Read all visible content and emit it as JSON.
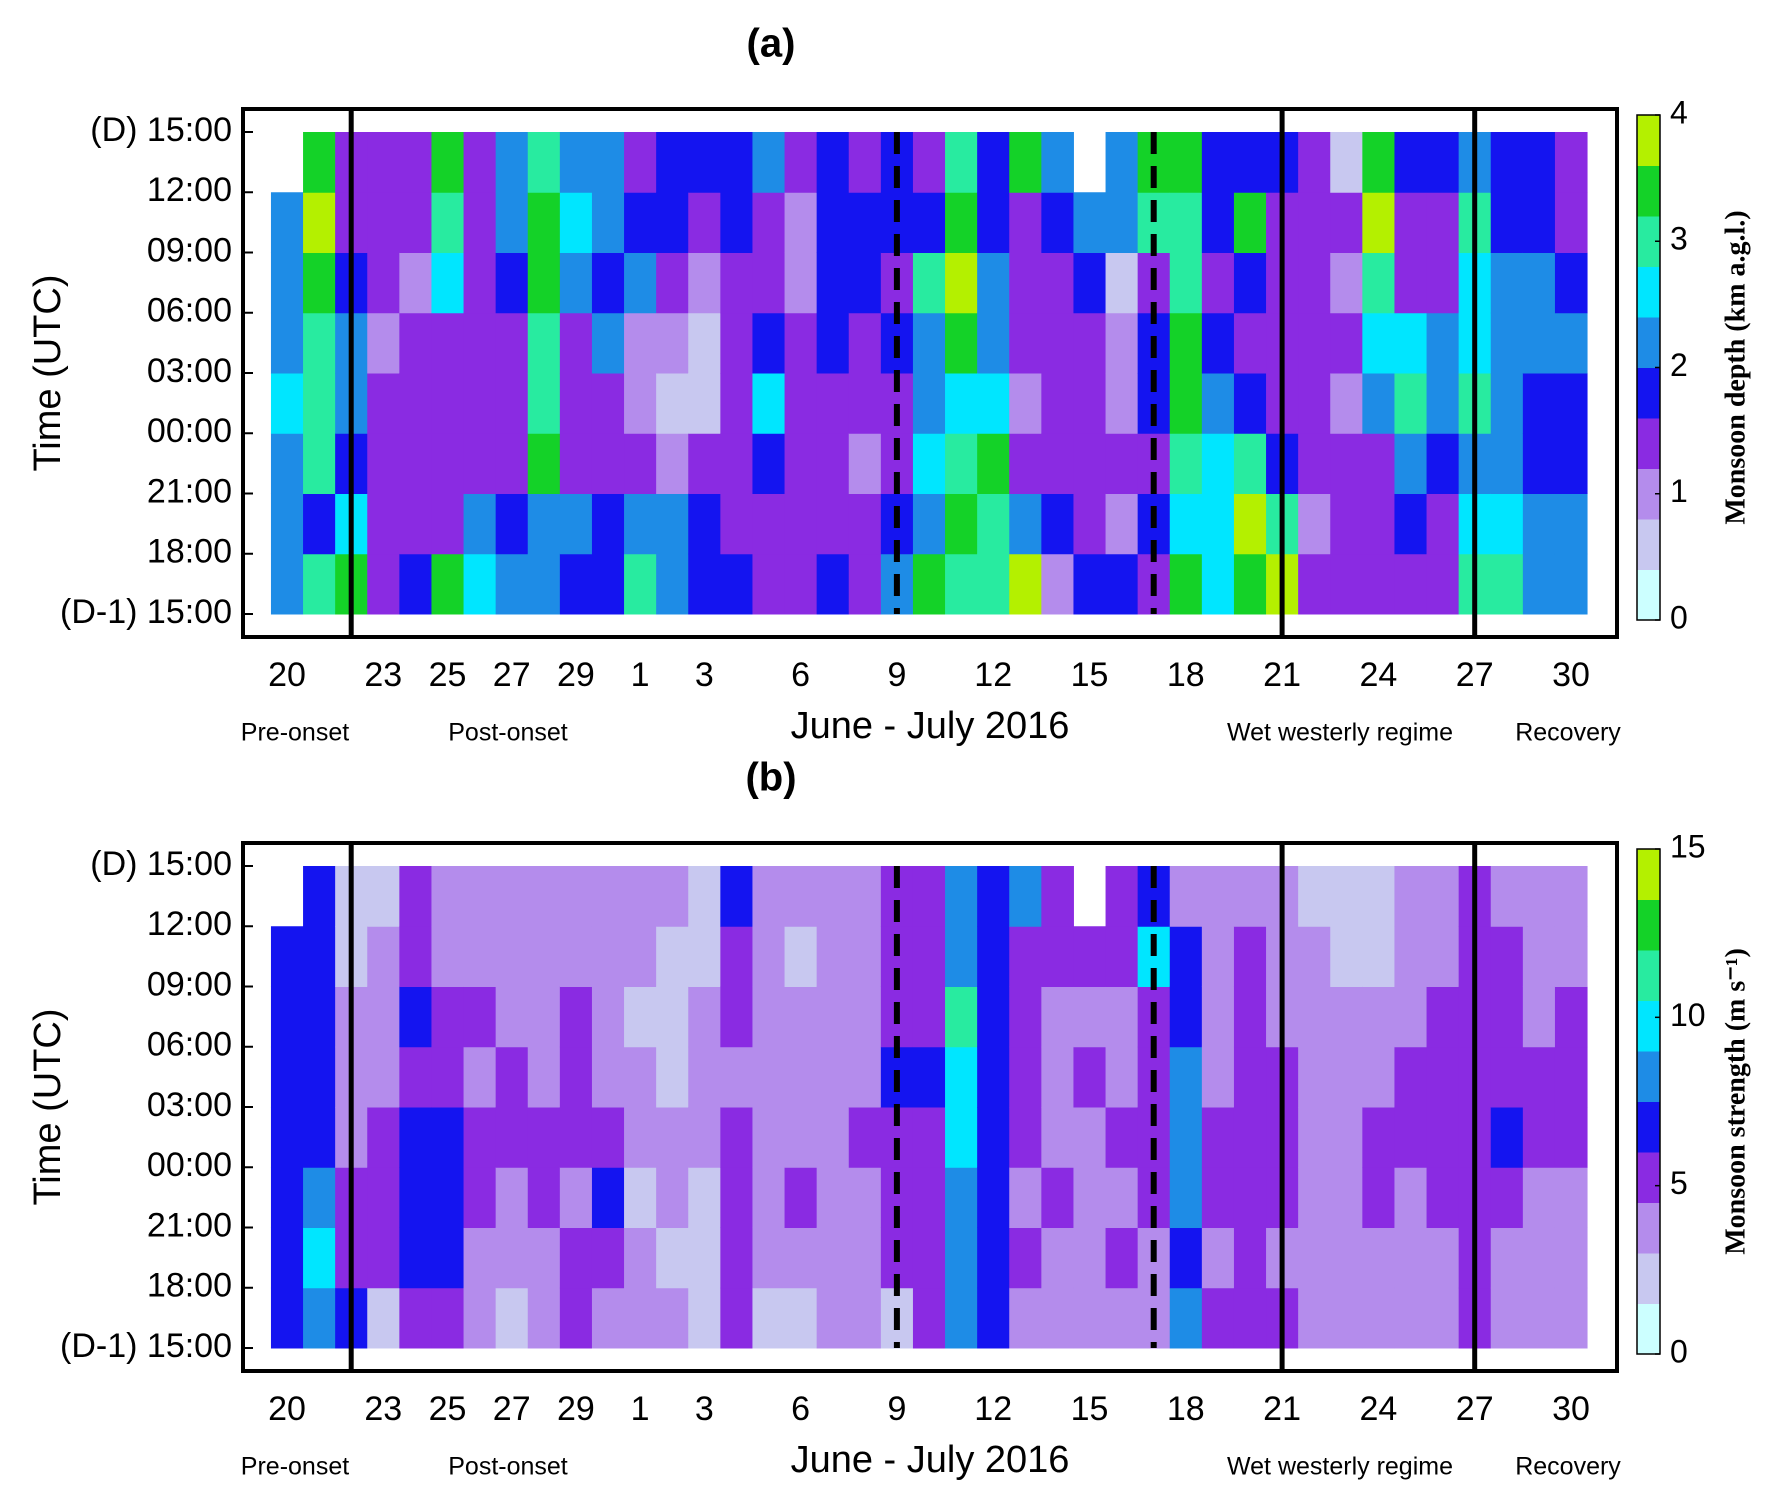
{
  "chart_data": [
    {
      "type": "heatmap",
      "title": "(a)",
      "xlabel": "June - July 2016",
      "ylabel": "Time (UTC)",
      "colorbar_label": "Monsoon depth (km a.g.l.)",
      "categories": [
        "20",
        null,
        null,
        "23",
        null,
        "25",
        null,
        "27",
        null,
        "29",
        null,
        "1",
        null,
        "3",
        null,
        null,
        "6",
        null,
        null,
        "9",
        null,
        null,
        "12",
        null,
        null,
        "15",
        null,
        null,
        "18",
        null,
        null,
        "21",
        null,
        null,
        "24",
        null,
        null,
        "27",
        null,
        null,
        "30"
      ],
      "ylim": [
        0,
        24
      ],
      "yticks": [
        {
          "value": 0,
          "label": "(D-1) 15:00"
        },
        {
          "value": 3,
          "label": "18:00"
        },
        {
          "value": 6,
          "label": "21:00"
        },
        {
          "value": 9,
          "label": "00:00"
        },
        {
          "value": 12,
          "label": "03:00"
        },
        {
          "value": 15,
          "label": "06:00"
        },
        {
          "value": 18,
          "label": "09:00"
        },
        {
          "value": 21,
          "label": "12:00"
        },
        {
          "value": 24,
          "label": "(D) 15:00"
        }
      ],
      "clim": [
        0,
        4
      ],
      "cticks": [
        0,
        1,
        2,
        3,
        4
      ],
      "colors": [
        "#ccffff",
        "#c8c8f0",
        "#b48cec",
        "#8a2be2",
        "#1414f0",
        "#1e8ce6",
        "#00e6ff",
        "#28eba0",
        "#14d228",
        "#b4f000"
      ],
      "annotations": [
        "Pre-onset",
        "Post-onset",
        "Wet westerly regime",
        "Recovery"
      ],
      "vlines": [
        {
          "at": 2,
          "style": "solid"
        },
        {
          "at": 19,
          "style": "dashed"
        },
        {
          "at": 27,
          "style": "dashed"
        },
        {
          "at": 31,
          "style": "solid"
        },
        {
          "at": 37,
          "style": "solid"
        }
      ],
      "z": [
        [
          2.2,
          2.1,
          2.3,
          2.4,
          2.3,
          2.2,
          2.3,
          null
        ],
        [
          2.8,
          1.8,
          3.0,
          2.9,
          3.1,
          3.2,
          3.6,
          3.5
        ],
        [
          3.4,
          2.6,
          1.8,
          2.0,
          2.2,
          1.6,
          1.2,
          1.3
        ],
        [
          1.4,
          1.2,
          1.5,
          1.3,
          1.1,
          1.2,
          1.3,
          1.4
        ],
        [
          1.6,
          1.3,
          1.2,
          1.5,
          1.4,
          1.1,
          1.2,
          1.3
        ],
        [
          3.3,
          1.5,
          1.4,
          1.2,
          1.3,
          2.6,
          3.0,
          3.4
        ],
        [
          2.7,
          2.2,
          1.5,
          1.3,
          1.2,
          1.4,
          1.3,
          1.3
        ],
        [
          2.0,
          1.6,
          1.4,
          1.2,
          1.3,
          1.8,
          2.1,
          2.0
        ],
        [
          2.3,
          2.2,
          3.2,
          2.8,
          3.1,
          3.5,
          3.2,
          2.9
        ],
        [
          1.8,
          2.0,
          1.5,
          1.2,
          1.4,
          2.3,
          2.5,
          2.2
        ],
        [
          1.7,
          1.6,
          1.2,
          1.4,
          2.0,
          1.9,
          2.1,
          2.0
        ],
        [
          2.9,
          2.2,
          1.4,
          0.8,
          0.9,
          2.0,
          1.6,
          1.5
        ],
        [
          2.2,
          2.0,
          1.0,
          0.7,
          0.9,
          1.3,
          1.8,
          1.9
        ],
        [
          1.8,
          1.9,
          1.4,
          0.6,
          0.7,
          0.8,
          1.2,
          1.6
        ],
        [
          1.7,
          1.3,
          1.2,
          1.5,
          1.3,
          1.4,
          1.6,
          1.7
        ],
        [
          1.3,
          1.2,
          1.6,
          2.6,
          1.7,
          1.4,
          1.3,
          2.3
        ],
        [
          1.4,
          1.3,
          1.2,
          1.5,
          1.2,
          0.9,
          0.8,
          1.4
        ],
        [
          1.6,
          1.4,
          1.3,
          1.5,
          1.7,
          1.6,
          1.6,
          1.7
        ],
        [
          1.5,
          1.2,
          1.1,
          1.3,
          1.4,
          1.6,
          1.7,
          1.5
        ],
        [
          2.0,
          1.7,
          1.3,
          1.4,
          1.6,
          1.5,
          1.7,
          1.6
        ],
        [
          3.2,
          2.2,
          2.5,
          2.1,
          2.3,
          2.8,
          1.8,
          1.4
        ],
        [
          3.0,
          3.2,
          3.1,
          2.4,
          3.3,
          3.6,
          3.2,
          3.1
        ],
        [
          2.9,
          3.1,
          3.3,
          2.4,
          2.3,
          2.0,
          1.6,
          1.9
        ],
        [
          3.6,
          2.2,
          1.4,
          1.1,
          1.3,
          1.5,
          1.2,
          3.3
        ],
        [
          1.0,
          1.8,
          1.3,
          1.2,
          1.4,
          1.5,
          1.8,
          2.1
        ],
        [
          1.9,
          1.4,
          1.2,
          1.3,
          1.5,
          1.6,
          2.0,
          null
        ],
        [
          1.6,
          1.0,
          1.2,
          1.1,
          0.9,
          0.7,
          2.1,
          2.0
        ],
        [
          1.5,
          1.8,
          1.4,
          1.6,
          1.7,
          1.5,
          3.1,
          3.3
        ],
        [
          3.3,
          2.7,
          3.1,
          3.4,
          3.3,
          2.9,
          3.0,
          3.3
        ],
        [
          2.6,
          2.5,
          2.4,
          2.2,
          1.6,
          1.5,
          1.6,
          1.6
        ],
        [
          3.5,
          3.6,
          3.1,
          1.6,
          1.4,
          1.6,
          3.4,
          1.7
        ],
        [
          3.8,
          2.8,
          1.6,
          1.4,
          1.2,
          1.3,
          1.4,
          1.6
        ],
        [
          1.2,
          1.1,
          1.3,
          1.2,
          1.4,
          1.5,
          1.3,
          1.5
        ],
        [
          1.3,
          1.2,
          1.5,
          1.1,
          1.2,
          0.8,
          1.3,
          0.4
        ],
        [
          1.4,
          1.3,
          1.5,
          2.3,
          2.4,
          3.0,
          3.7,
          3.5
        ],
        [
          1.2,
          1.6,
          2.1,
          3.0,
          2.6,
          1.3,
          1.4,
          1.6
        ],
        [
          1.3,
          1.4,
          1.7,
          2.1,
          2.0,
          1.5,
          1.4,
          1.6
        ],
        [
          2.8,
          2.5,
          2.2,
          3.0,
          2.7,
          2.4,
          2.9,
          2.2
        ],
        [
          2.9,
          2.5,
          2.1,
          2.0,
          2.2,
          2.1,
          1.9,
          1.8
        ],
        [
          2.2,
          2.0,
          1.8,
          1.9,
          2.1,
          2.0,
          1.7,
          1.6
        ],
        [
          2.3,
          2.2,
          1.9,
          1.6,
          2.0,
          1.8,
          1.5,
          1.4
        ]
      ]
    },
    {
      "type": "heatmap",
      "title": "(b)",
      "xlabel": "June - July 2016",
      "ylabel": "Time (UTC)",
      "colorbar_label": "Monsoon strength (m s⁻¹)",
      "categories": [
        "20",
        null,
        null,
        "23",
        null,
        "25",
        null,
        "27",
        null,
        "29",
        null,
        "1",
        null,
        "3",
        null,
        null,
        "6",
        null,
        null,
        "9",
        null,
        null,
        "12",
        null,
        null,
        "15",
        null,
        null,
        "18",
        null,
        null,
        "21",
        null,
        null,
        "24",
        null,
        null,
        "27",
        null,
        null,
        "30"
      ],
      "ylim": [
        0,
        24
      ],
      "yticks": [
        {
          "value": 0,
          "label": "(D-1) 15:00"
        },
        {
          "value": 3,
          "label": "18:00"
        },
        {
          "value": 6,
          "label": "21:00"
        },
        {
          "value": 9,
          "label": "00:00"
        },
        {
          "value": 12,
          "label": "03:00"
        },
        {
          "value": 15,
          "label": "06:00"
        },
        {
          "value": 18,
          "label": "09:00"
        },
        {
          "value": 21,
          "label": "12:00"
        },
        {
          "value": 24,
          "label": "(D) 15:00"
        }
      ],
      "clim": [
        0,
        15
      ],
      "cticks": [
        0,
        5,
        10,
        15
      ],
      "colors": [
        "#ccffff",
        "#c8c8f0",
        "#b48cec",
        "#8a2be2",
        "#1414f0",
        "#1e8ce6",
        "#00e6ff",
        "#28eba0",
        "#14d228",
        "#b4f000"
      ],
      "annotations": [
        "Pre-onset",
        "Post-onset",
        "Wet westerly regime",
        "Recovery"
      ],
      "vlines": [
        {
          "at": 2,
          "style": "solid"
        },
        {
          "at": 19,
          "style": "dashed"
        },
        {
          "at": 27,
          "style": "dashed"
        },
        {
          "at": 31,
          "style": "solid"
        },
        {
          "at": 37,
          "style": "solid"
        }
      ],
      "z": [
        [
          6.5,
          6.8,
          7.2,
          6.4,
          6.9,
          7.1,
          6.2,
          null
        ],
        [
          7.5,
          10.2,
          8.0,
          7.4,
          6.8,
          6.5,
          7.0,
          7.2
        ],
        [
          6.0,
          5.5,
          4.8,
          3.5,
          3.2,
          3.0,
          2.8,
          2.6
        ],
        [
          2.8,
          5.2,
          4.6,
          5.4,
          3.9,
          3.5,
          3.2,
          2.9
        ],
        [
          5.1,
          6.8,
          6.2,
          7.0,
          5.8,
          6.3,
          5.6,
          4.5
        ],
        [
          4.6,
          6.4,
          7.2,
          6.5,
          5.5,
          4.8,
          4.2,
          3.7
        ],
        [
          3.0,
          3.8,
          5.2,
          4.6,
          4.3,
          4.8,
          3.6,
          3.3
        ],
        [
          2.5,
          3.6,
          4.2,
          5.5,
          5.0,
          3.9,
          3.4,
          3.2
        ],
        [
          3.2,
          3.4,
          5.5,
          4.9,
          4.1,
          3.6,
          4.4,
          3.9
        ],
        [
          5.3,
          5.0,
          4.4,
          4.8,
          4.7,
          5.1,
          4.3,
          3.8
        ],
        [
          3.8,
          4.6,
          6.5,
          5.9,
          4.3,
          3.7,
          3.5,
          3.3
        ],
        [
          3.2,
          3.1,
          2.9,
          3.3,
          3.6,
          2.7,
          3.1,
          3.0
        ],
        [
          3.0,
          2.7,
          3.4,
          3.2,
          2.9,
          2.5,
          2.8,
          3.1
        ],
        [
          2.8,
          2.4,
          2.9,
          3.1,
          3.3,
          3.0,
          2.6,
          2.5
        ],
        [
          5.8,
          5.2,
          4.7,
          5.3,
          4.4,
          5.6,
          4.9,
          6.1
        ],
        [
          2.9,
          3.3,
          3.6,
          4.2,
          3.8,
          3.5,
          3.1,
          3.4
        ],
        [
          2.4,
          3.8,
          4.5,
          4.1,
          3.6,
          3.2,
          2.9,
          3.0
        ],
        [
          3.5,
          4.4,
          4.0,
          3.7,
          4.1,
          3.8,
          3.3,
          3.6
        ],
        [
          3.3,
          3.0,
          3.6,
          4.6,
          3.9,
          4.2,
          3.7,
          3.4
        ],
        [
          2.6,
          5.4,
          5.8,
          5.3,
          6.2,
          5.7,
          5.4,
          5.9
        ],
        [
          5.6,
          4.9,
          5.5,
          5.2,
          6.4,
          5.8,
          5.3,
          5.1
        ],
        [
          7.8,
          8.2,
          8.8,
          9.5,
          9.8,
          10.5,
          8.2,
          7.6
        ],
        [
          6.9,
          7.4,
          6.8,
          6.2,
          7.1,
          7.4,
          7.3,
          6.8
        ],
        [
          3.2,
          4.8,
          4.4,
          5.3,
          5.8,
          5.1,
          4.6,
          7.5
        ],
        [
          3.6,
          4.1,
          4.7,
          4.2,
          3.9,
          4.4,
          4.9,
          5.2
        ],
        [
          3.9,
          3.5,
          4.1,
          3.7,
          4.5,
          4.0,
          4.8,
          null
        ],
        [
          3.4,
          4.6,
          4.3,
          4.9,
          4.4,
          4.2,
          4.8,
          5.3
        ],
        [
          3.8,
          4.2,
          4.5,
          4.9,
          5.3,
          5.6,
          9.5,
          6.2
        ],
        [
          7.6,
          7.3,
          7.5,
          8.1,
          7.8,
          7.1,
          6.5,
          4.2
        ],
        [
          4.5,
          4.3,
          4.9,
          5.1,
          4.4,
          3.8,
          3.6,
          3.5
        ],
        [
          4.8,
          5.3,
          5.6,
          5.8,
          5.4,
          4.9,
          4.6,
          4.4
        ],
        [
          4.7,
          4.3,
          4.9,
          5.2,
          4.8,
          4.4,
          3.9,
          3.7
        ],
        [
          3.8,
          3.5,
          4.1,
          4.0,
          3.6,
          3.4,
          3.0,
          2.8
        ],
        [
          3.4,
          3.0,
          3.7,
          4.4,
          4.1,
          3.5,
          2.9,
          2.6
        ],
        [
          3.7,
          3.9,
          4.5,
          4.8,
          4.2,
          3.6,
          2.8,
          2.4
        ],
        [
          3.1,
          3.6,
          4.2,
          5.3,
          4.6,
          3.8,
          3.2,
          3.5
        ],
        [
          4.0,
          4.4,
          4.8,
          5.4,
          5.0,
          4.6,
          4.1,
          3.9
        ],
        [
          4.9,
          5.3,
          5.6,
          5.9,
          5.5,
          5.2,
          4.8,
          4.6
        ],
        [
          3.6,
          4.1,
          4.6,
          6.3,
          5.7,
          5.0,
          4.6,
          4.4
        ],
        [
          3.2,
          3.6,
          4.2,
          5.2,
          4.7,
          4.3,
          4.0,
          3.8
        ],
        [
          3.4,
          3.8,
          4.4,
          5.5,
          5.0,
          4.6,
          4.3,
          4.1
        ]
      ]
    }
  ]
}
